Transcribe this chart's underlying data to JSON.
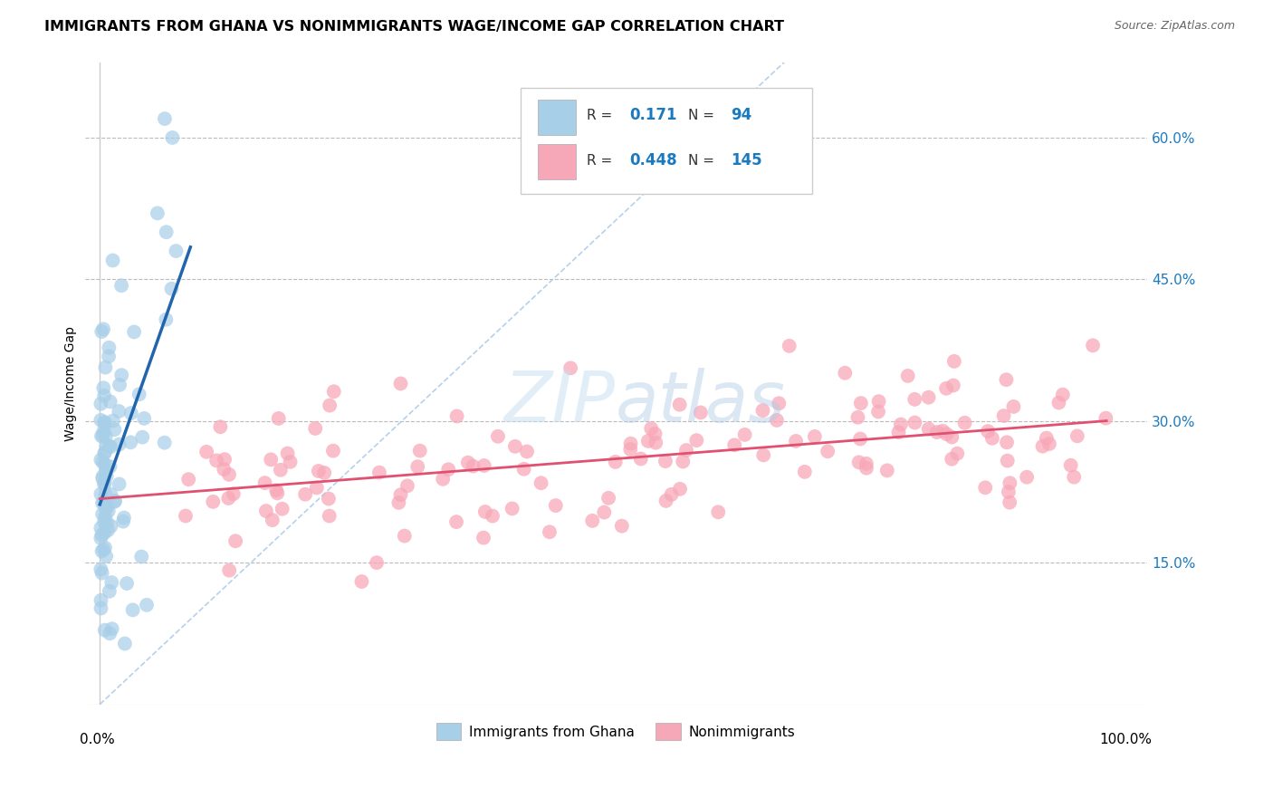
{
  "title": "IMMIGRANTS FROM GHANA VS NONIMMIGRANTS WAGE/INCOME GAP CORRELATION CHART",
  "source": "Source: ZipAtlas.com",
  "ylabel": "Wage/Income Gap",
  "yticks": [
    "15.0%",
    "30.0%",
    "45.0%",
    "60.0%"
  ],
  "ytick_vals": [
    0.15,
    0.3,
    0.45,
    0.6
  ],
  "legend_label1": "Immigrants from Ghana",
  "legend_label2": "Nonimmigrants",
  "R1": 0.171,
  "N1": 94,
  "R2": 0.448,
  "N2": 145,
  "color1": "#a8cfe8",
  "color2": "#f7a8b8",
  "trendline1_color": "#2166ac",
  "trendline2_color": "#e05070",
  "diagonal_color": "#aac8e8",
  "background_color": "#ffffff"
}
